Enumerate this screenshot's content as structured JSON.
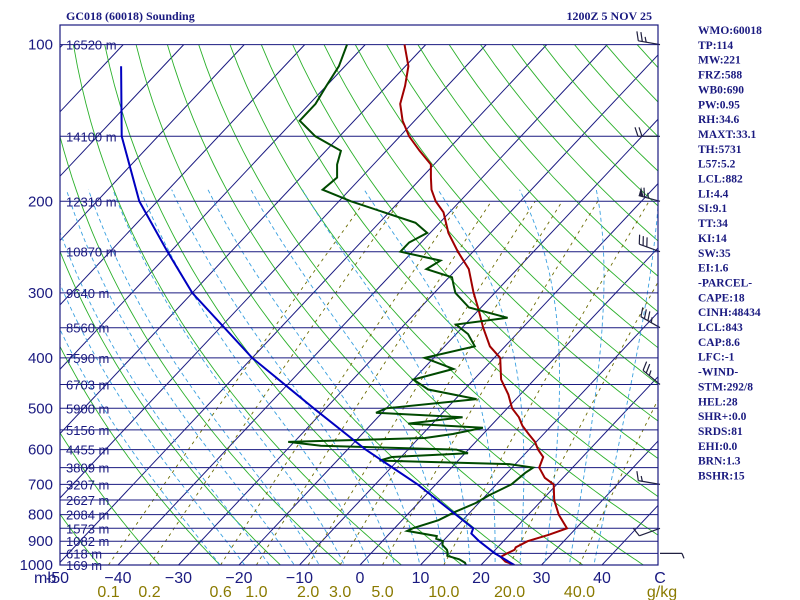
{
  "header": {
    "title": "GC018 (60018) Sounding",
    "datetime": "1200Z  5 NOV 25"
  },
  "chart_data": {
    "type": "line",
    "x_axis": {
      "temperature_label": "C",
      "temperature_ticks": [
        -50,
        -40,
        -30,
        -20,
        -10,
        0,
        10,
        20,
        30,
        40
      ],
      "temperature_tick_labels": [
        "-50",
        "−40",
        "−30",
        "−20",
        "−10",
        "0",
        "10",
        "20",
        "30",
        "40"
      ],
      "mixing_ratio_label": "g/kg",
      "mixing_ratio_ticks": [
        0.1,
        0.2,
        0.6,
        1.0,
        2.0,
        3.0,
        5.0,
        10.0,
        20.0,
        40.0
      ],
      "mixing_ratio_tick_labels": [
        "0.1",
        "0.2",
        "0.6",
        "1.0",
        "2.0",
        "3.0",
        "5.0",
        "10.0",
        "20.0",
        "40.0"
      ]
    },
    "y_axis": {
      "label": "mb",
      "pressure_ticks": [
        100,
        200,
        300,
        400,
        500,
        600,
        700,
        800,
        900,
        1000
      ],
      "pressure_range": [
        1000,
        100
      ],
      "scale": "log"
    },
    "height_levels": [
      {
        "p": 100,
        "label": "16520 m"
      },
      {
        "p": 150,
        "label": "14100 m"
      },
      {
        "p": 200,
        "label": "12310 m"
      },
      {
        "p": 250,
        "label": "10870 m"
      },
      {
        "p": 300,
        "label": "9640 m"
      },
      {
        "p": 350,
        "label": "8560 m"
      },
      {
        "p": 400,
        "label": "7590 m"
      },
      {
        "p": 450,
        "label": "6703 m"
      },
      {
        "p": 500,
        "label": "5900 m"
      },
      {
        "p": 550,
        "label": "5156 m"
      },
      {
        "p": 600,
        "label": "4455 m"
      },
      {
        "p": 650,
        "label": "3809 m"
      },
      {
        "p": 700,
        "label": "3207 m"
      },
      {
        "p": 750,
        "label": "2627 m"
      },
      {
        "p": 800,
        "label": "2084 m"
      },
      {
        "p": 850,
        "label": "1573 m"
      },
      {
        "p": 900,
        "label": "1082 m"
      },
      {
        "p": 950,
        "label": "618 m"
      },
      {
        "p": 1000,
        "label": "169 m"
      }
    ],
    "series": [
      {
        "color": "#a00000",
        "points": [
          [
            1000,
            25.5
          ],
          [
            985,
            23.5
          ],
          [
            965,
            22.0
          ],
          [
            950,
            22.5
          ],
          [
            935,
            23.2
          ],
          [
            925,
            23.0
          ],
          [
            900,
            24.0
          ],
          [
            875,
            26.5
          ],
          [
            850,
            28.5
          ],
          [
            800,
            25.0
          ],
          [
            750,
            22.0
          ],
          [
            700,
            19.5
          ],
          [
            680,
            17.0
          ],
          [
            650,
            14.5
          ],
          [
            620,
            13.5
          ],
          [
            600,
            11.5
          ],
          [
            580,
            9.8
          ],
          [
            560,
            7.5
          ],
          [
            540,
            5.2
          ],
          [
            520,
            3.3
          ],
          [
            500,
            0.8
          ],
          [
            470,
            -2.0
          ],
          [
            440,
            -5.5
          ],
          [
            400,
            -9.0
          ],
          [
            380,
            -12.5
          ],
          [
            350,
            -16.5
          ],
          [
            320,
            -20.5
          ],
          [
            300,
            -23.5
          ],
          [
            270,
            -28.0
          ],
          [
            250,
            -32.5
          ],
          [
            230,
            -37.0
          ],
          [
            210,
            -41.0
          ],
          [
            200,
            -44.0
          ],
          [
            190,
            -46.5
          ],
          [
            180,
            -48.5
          ],
          [
            170,
            -50.5
          ],
          [
            160,
            -54.5
          ],
          [
            150,
            -58.5
          ],
          [
            140,
            -62.0
          ],
          [
            130,
            -65.0
          ],
          [
            120,
            -67.0
          ],
          [
            110,
            -69.5
          ],
          [
            100,
            -73.5
          ]
        ]
      },
      {
        "color": "#004a00",
        "points": [
          [
            1000,
            17.5
          ],
          [
            990,
            17.0
          ],
          [
            975,
            15.5
          ],
          [
            960,
            13.0
          ],
          [
            945,
            12.5
          ],
          [
            935,
            12.0
          ],
          [
            915,
            10.5
          ],
          [
            900,
            10.0
          ],
          [
            890,
            8.5
          ],
          [
            880,
            8.2
          ],
          [
            860,
            2.5
          ],
          [
            850,
            3.0
          ],
          [
            820,
            6.0
          ],
          [
            790,
            7.5
          ],
          [
            760,
            9.5
          ],
          [
            735,
            10.5
          ],
          [
            700,
            12.5
          ],
          [
            665,
            13.0
          ],
          [
            650,
            13.5
          ],
          [
            640,
            9.0
          ],
          [
            630,
            -13.0
          ],
          [
            620,
            -11.5
          ],
          [
            610,
            0.5
          ],
          [
            600,
            -2.0
          ],
          [
            590,
            -25.0
          ],
          [
            580,
            -31.0
          ],
          [
            570,
            -9.0
          ],
          [
            560,
            -5.0
          ],
          [
            545,
            -1.0
          ],
          [
            535,
            -14.0
          ],
          [
            520,
            -6.0
          ],
          [
            510,
            -21.0
          ],
          [
            500,
            -20.0
          ],
          [
            480,
            -6.5
          ],
          [
            460,
            -16.0
          ],
          [
            440,
            -20.0
          ],
          [
            420,
            -15.0
          ],
          [
            400,
            -21.5
          ],
          [
            380,
            -15.0
          ],
          [
            360,
            -18.0
          ],
          [
            345,
            -21.5
          ],
          [
            335,
            -14.0
          ],
          [
            320,
            -22.0
          ],
          [
            300,
            -26.5
          ],
          [
            290,
            -28.0
          ],
          [
            280,
            -29.5
          ],
          [
            270,
            -35.0
          ],
          [
            260,
            -34.0
          ],
          [
            250,
            -42.0
          ],
          [
            240,
            -42.0
          ],
          [
            230,
            -40.5
          ],
          [
            220,
            -44.0
          ],
          [
            200,
            -58.0
          ],
          [
            190,
            -64.5
          ],
          [
            180,
            -64.0
          ],
          [
            170,
            -66.0
          ],
          [
            160,
            -67.5
          ],
          [
            150,
            -74.0
          ],
          [
            140,
            -79.0
          ],
          [
            130,
            -79.0
          ],
          [
            120,
            -80.0
          ],
          [
            110,
            -81.0
          ],
          [
            100,
            -83.0
          ]
        ]
      },
      {
        "color": "#0000c0",
        "points": [
          [
            1000,
            25.5
          ],
          [
            950,
            20.5
          ],
          [
            900,
            16.0
          ],
          [
            870,
            13.5
          ],
          [
            850,
            13.0
          ],
          [
            800,
            8.0
          ],
          [
            700,
            -3.0
          ],
          [
            600,
            -17.0
          ],
          [
            500,
            -32.0
          ],
          [
            400,
            -50.0
          ],
          [
            300,
            -70.0
          ],
          [
            250,
            -80.5
          ],
          [
            200,
            -93.0
          ],
          [
            150,
            -106.0
          ],
          [
            110,
            -117.0
          ]
        ]
      }
    ],
    "wind_barbs": [
      {
        "p": 100,
        "dir": 280,
        "kt": 25
      },
      {
        "p": 150,
        "dir": 270,
        "kt": 20
      },
      {
        "p": 200,
        "dir": 285,
        "kt": 65
      },
      {
        "p": 250,
        "dir": 290,
        "kt": 30
      },
      {
        "p": 350,
        "dir": 300,
        "kt": 35
      },
      {
        "p": 450,
        "dir": 310,
        "kt": 25
      },
      {
        "p": 700,
        "dir": 280,
        "kt": 15
      },
      {
        "p": 850,
        "dir": 250,
        "kt": 10
      },
      {
        "p": 950,
        "dir": 90,
        "kt": 5
      }
    ],
    "colors": {
      "frame": "#1a1a80",
      "isobar": "#1a1a80",
      "isotherm": "#1a1a80",
      "dry_adiabat": "#2bb02b",
      "moist_adiabat": "#3aa0e0",
      "mixing_ratio_line": "#6b6b00",
      "temperature": "#a00000",
      "dewpoint": "#004a00",
      "parcel": "#0000c0",
      "wind_barb": "#202040"
    }
  },
  "indices": [
    "WMO:60018",
    "TP:114",
    "MW:221",
    "FRZ:588",
    "WB0:690",
    "PW:0.95",
    "RH:34.6",
    "MAXT:33.1",
    "TH:5731",
    "L57:5.2",
    "LCL:882",
    "LI:4.4",
    "SI:9.1",
    "TT:34",
    "KI:14",
    "SW:35",
    "EI:1.6",
    "-PARCEL-",
    "CAPE:18",
    "CINH:48434",
    "LCL:843",
    "CAP:8.6",
    "LFC:-1",
    "-WIND-",
    "STM:292/8",
    "HEL:28",
    "SHR+:0.0",
    "SRDS:81",
    "EHI:0.0",
    "BRN:1.3",
    "BSHR:15"
  ]
}
